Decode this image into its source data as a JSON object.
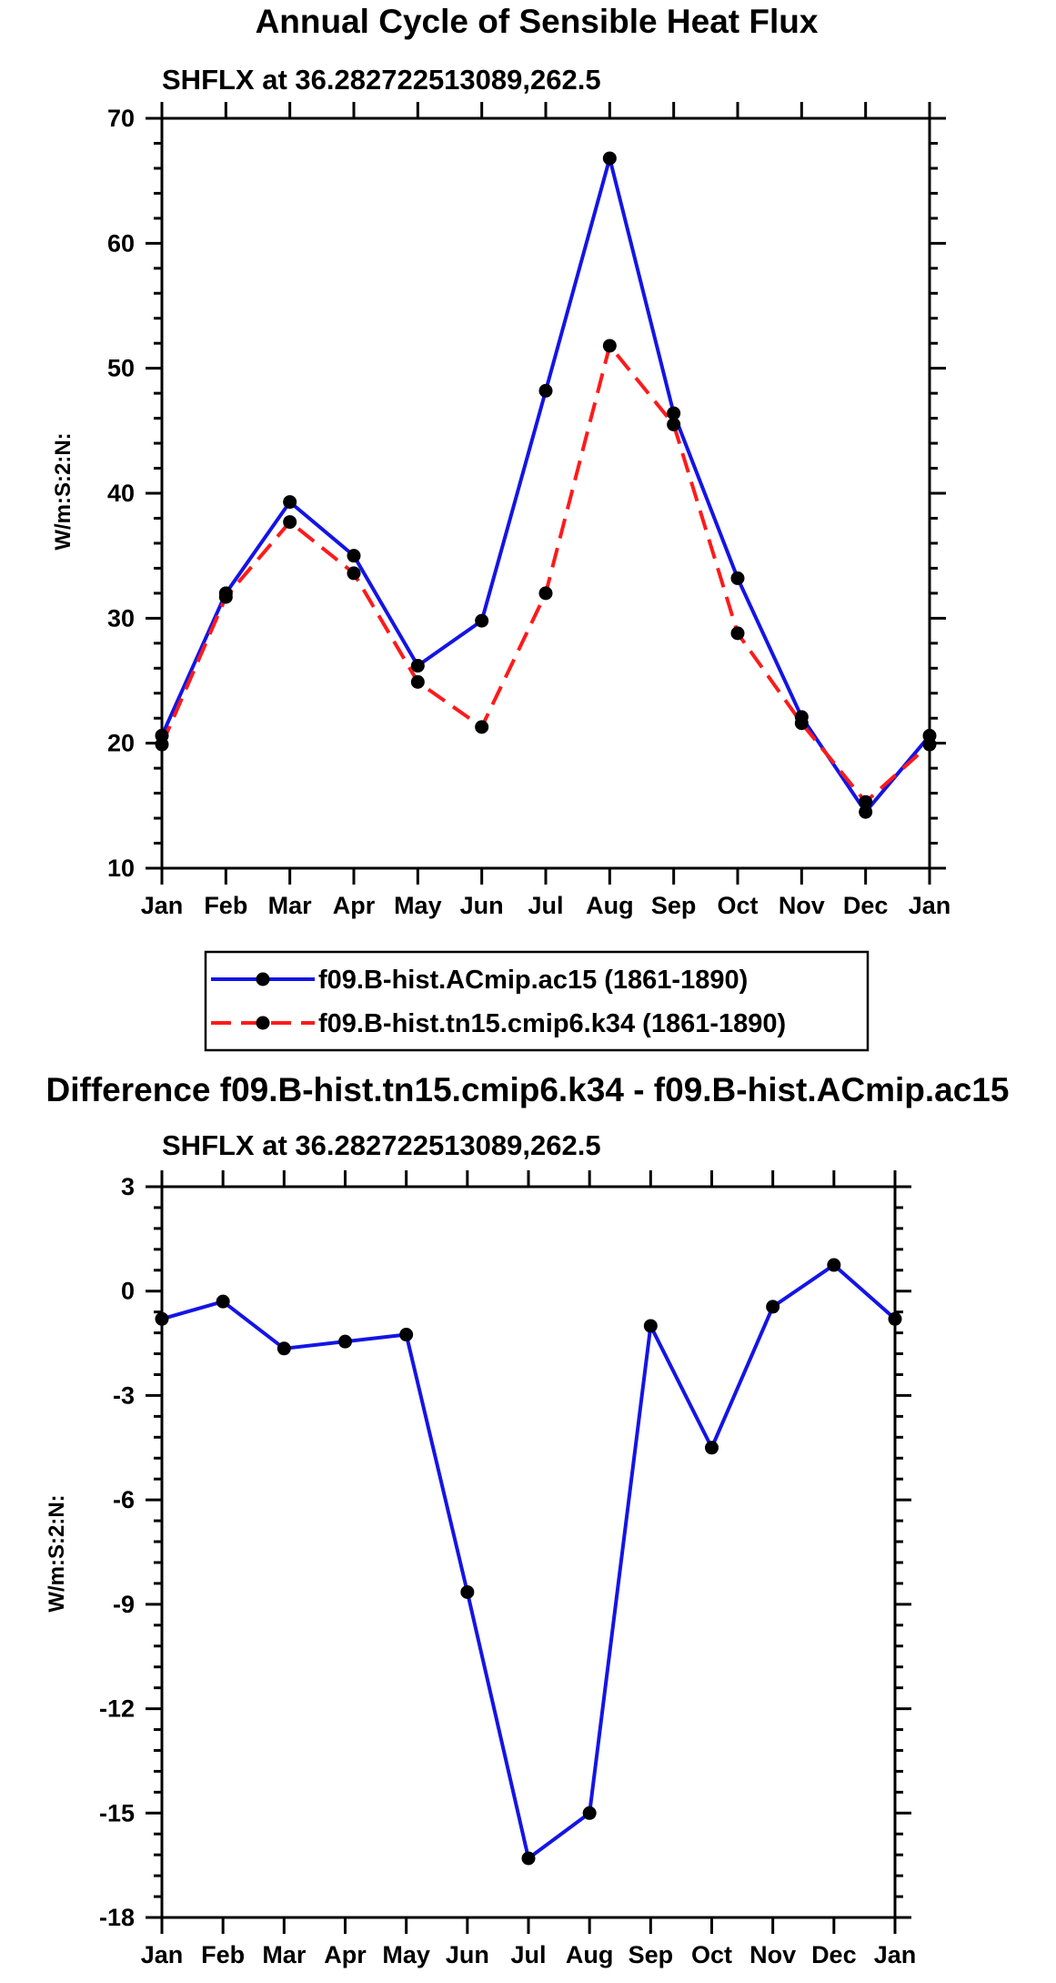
{
  "chart_data": [
    {
      "type": "line",
      "title": "Annual Cycle of Sensible Heat Flux",
      "subtitle": "SHFLX at 36.282722513089,262.5",
      "xlabel": "",
      "ylabel": "W/m:S:2:N:",
      "categories": [
        "Jan",
        "Feb",
        "Mar",
        "Apr",
        "May",
        "Jun",
        "Jul",
        "Aug",
        "Sep",
        "Oct",
        "Nov",
        "Dec",
        "Jan"
      ],
      "ylim": [
        10,
        70
      ],
      "yticks": [
        "10",
        "20",
        "30",
        "40",
        "50",
        "60",
        "70"
      ],
      "ytick_values": [
        10,
        20,
        30,
        40,
        50,
        60,
        70
      ],
      "grid": false,
      "legend": "bottom-center",
      "series": [
        {
          "name": "f09.B-hist.ACmip.ac15 (1861-1890)",
          "color": "#1414e6",
          "dash": "solid",
          "values": [
            20.6,
            32.0,
            39.3,
            35.0,
            26.2,
            29.8,
            48.2,
            66.8,
            46.4,
            33.2,
            22.1,
            14.5,
            20.6
          ]
        },
        {
          "name": "f09.B-hist.tn15.cmip6.k34 (1861-1890)",
          "color": "#ff1a1a",
          "dash": "dashed",
          "values": [
            19.9,
            31.7,
            37.7,
            33.6,
            24.9,
            21.3,
            32.0,
            51.8,
            45.5,
            28.8,
            21.6,
            15.3,
            19.9
          ]
        }
      ]
    },
    {
      "type": "line",
      "title": "Difference f09.B-hist.tn15.cmip6.k34 - f09.B-hist.ACmip.ac15",
      "subtitle": "SHFLX at 36.282722513089,262.5",
      "xlabel": "",
      "ylabel": "W/m:S:2:N:",
      "categories": [
        "Jan",
        "Feb",
        "Mar",
        "Apr",
        "May",
        "Jun",
        "Jul",
        "Aug",
        "Sep",
        "Oct",
        "Nov",
        "Dec",
        "Jan"
      ],
      "ylim": [
        -18,
        3
      ],
      "yticks": [
        "-18",
        "-15",
        "-12",
        "-9",
        "-6",
        "-3",
        "0",
        "3"
      ],
      "ytick_values": [
        -18,
        -15,
        -12,
        -9,
        -6,
        -3,
        0,
        3
      ],
      "grid": false,
      "series": [
        {
          "name": "Difference",
          "color": "#1414e6",
          "dash": "solid",
          "values": [
            -0.8,
            -0.3,
            -1.65,
            -1.45,
            -1.25,
            -8.65,
            -16.3,
            -15.0,
            -1.0,
            -4.5,
            -0.45,
            0.75,
            -0.8
          ]
        }
      ]
    }
  ]
}
